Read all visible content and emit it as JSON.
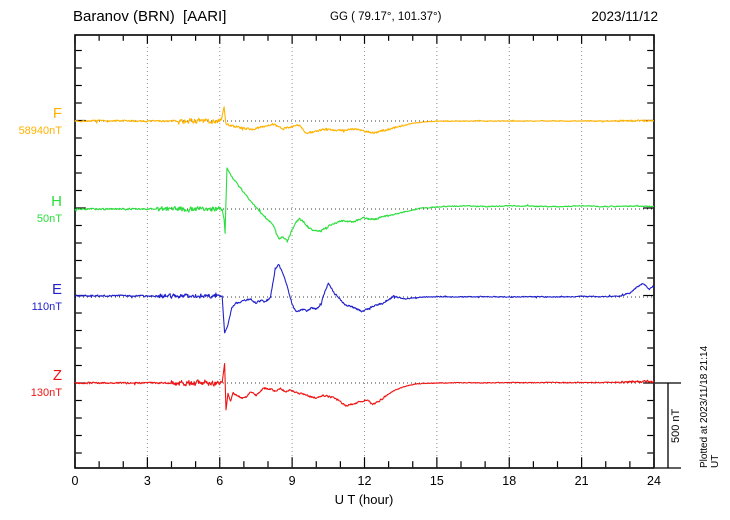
{
  "header": {
    "station": "Baranov (BRN)  [AARI]",
    "coords": "GG ( 79.17°, 101.37°)",
    "date": "2023/11/12"
  },
  "side_note": "Plotted at 2023/11/18 21:14 UT",
  "chart_data": {
    "type": "line",
    "title": "Baranov (BRN) [AARI] magnetogram 2023/11/12",
    "xlabel": "U T (hour)",
    "xlim": [
      0,
      24
    ],
    "x_ticks": [
      0,
      3,
      6,
      9,
      12,
      15,
      18,
      21,
      24
    ],
    "x_minor_step": 1,
    "grid_hours": [
      3,
      6,
      9,
      12,
      15,
      18,
      21
    ],
    "grid_on": true,
    "y_tick_step_nT": 100,
    "scale_bar": {
      "label": "500 nT",
      "nT": 500
    },
    "traces": [
      {
        "id": "F",
        "label": "F",
        "amplitude_label": "58940nT",
        "color": "#ffb300",
        "seed": 7,
        "keypoints": [
          [
            0,
            0
          ],
          [
            6.05,
            0
          ],
          [
            6.18,
            80
          ],
          [
            6.25,
            -15
          ],
          [
            6.5,
            -28
          ],
          [
            7,
            -42
          ],
          [
            7.4,
            -48
          ],
          [
            7.7,
            -34
          ],
          [
            8.2,
            -18
          ],
          [
            8.6,
            -46
          ],
          [
            9,
            -30
          ],
          [
            9.3,
            -24
          ],
          [
            9.6,
            -72
          ],
          [
            10,
            -58
          ],
          [
            10.4,
            -46
          ],
          [
            10.8,
            -56
          ],
          [
            11.2,
            -50
          ],
          [
            11.6,
            -44
          ],
          [
            12,
            -58
          ],
          [
            12.4,
            -68
          ],
          [
            12.8,
            -54
          ],
          [
            13.2,
            -40
          ],
          [
            13.6,
            -26
          ],
          [
            14,
            -13
          ],
          [
            14.5,
            -5
          ],
          [
            15,
            -1
          ],
          [
            16,
            0
          ],
          [
            17,
            0
          ],
          [
            18,
            0
          ],
          [
            19,
            0
          ],
          [
            20,
            0
          ],
          [
            21,
            0
          ],
          [
            22,
            0
          ],
          [
            23,
            2
          ],
          [
            24,
            2
          ]
        ],
        "noise": [
          [
            0,
            4.3,
            9
          ],
          [
            4.3,
            6.1,
            26
          ],
          [
            6.3,
            13.5,
            11
          ],
          [
            13.5,
            22.5,
            4
          ],
          [
            22.5,
            24,
            9
          ]
        ]
      },
      {
        "id": "H",
        "label": "H",
        "amplitude_label": "50nT",
        "color": "#2ade3c",
        "seed": 13,
        "keypoints": [
          [
            0,
            0
          ],
          [
            6.1,
            0
          ],
          [
            6.18,
            -60
          ],
          [
            6.22,
            -140
          ],
          [
            6.3,
            235
          ],
          [
            6.45,
            195
          ],
          [
            6.6,
            165
          ],
          [
            6.8,
            130
          ],
          [
            7,
            95
          ],
          [
            7.2,
            60
          ],
          [
            7.4,
            25
          ],
          [
            7.6,
            -5
          ],
          [
            7.9,
            -48
          ],
          [
            8.2,
            -85
          ],
          [
            8.45,
            -172
          ],
          [
            8.6,
            -158
          ],
          [
            8.8,
            -182
          ],
          [
            9,
            -120
          ],
          [
            9.15,
            -78
          ],
          [
            9.3,
            -56
          ],
          [
            9.5,
            -76
          ],
          [
            9.7,
            -108
          ],
          [
            9.95,
            -128
          ],
          [
            10.2,
            -122
          ],
          [
            10.5,
            -100
          ],
          [
            10.8,
            -80
          ],
          [
            11.1,
            -66
          ],
          [
            11.5,
            -74
          ],
          [
            12,
            -50
          ],
          [
            12.4,
            -60
          ],
          [
            12.8,
            -42
          ],
          [
            13.2,
            -33
          ],
          [
            13.6,
            -18
          ],
          [
            14,
            -6
          ],
          [
            14.4,
            6
          ],
          [
            15,
            12
          ],
          [
            16,
            18
          ],
          [
            17,
            14
          ],
          [
            18,
            18
          ],
          [
            19,
            16
          ],
          [
            20,
            13
          ],
          [
            21,
            18
          ],
          [
            22,
            14
          ],
          [
            23,
            17
          ],
          [
            24,
            15
          ]
        ],
        "noise": [
          [
            0,
            3.4,
            8
          ],
          [
            3.4,
            6.1,
            24
          ],
          [
            6.5,
            13,
            10
          ],
          [
            13,
            24,
            5
          ]
        ]
      },
      {
        "id": "E",
        "label": "E",
        "amplitude_label": "110nT",
        "color": "#2222cc",
        "seed": 21,
        "keypoints": [
          [
            0,
            8
          ],
          [
            6.1,
            5
          ],
          [
            6.2,
            -205
          ],
          [
            6.32,
            -168
          ],
          [
            6.5,
            -62
          ],
          [
            6.7,
            -35
          ],
          [
            6.9,
            -25
          ],
          [
            7.1,
            -18
          ],
          [
            7.3,
            -12
          ],
          [
            7.5,
            -35
          ],
          [
            7.7,
            -18
          ],
          [
            7.9,
            -30
          ],
          [
            8.1,
            -5
          ],
          [
            8.3,
            160
          ],
          [
            8.45,
            185
          ],
          [
            8.6,
            138
          ],
          [
            8.8,
            60
          ],
          [
            9,
            -45
          ],
          [
            9.2,
            -88
          ],
          [
            9.4,
            -70
          ],
          [
            9.6,
            -80
          ],
          [
            9.8,
            -62
          ],
          [
            10,
            -70
          ],
          [
            10.2,
            -42
          ],
          [
            10.35,
            30
          ],
          [
            10.5,
            76
          ],
          [
            10.65,
            45
          ],
          [
            10.8,
            15
          ],
          [
            11,
            -15
          ],
          [
            11.2,
            -45
          ],
          [
            11.5,
            -58
          ],
          [
            11.9,
            -82
          ],
          [
            12.1,
            -70
          ],
          [
            12.4,
            -50
          ],
          [
            12.7,
            -38
          ],
          [
            13,
            -18
          ],
          [
            13.2,
            6
          ],
          [
            13.45,
            -6
          ],
          [
            13.7,
            -12
          ],
          [
            14,
            -5
          ],
          [
            14.5,
            0
          ],
          [
            15,
            2
          ],
          [
            16,
            0
          ],
          [
            17,
            3
          ],
          [
            18,
            0
          ],
          [
            19,
            2
          ],
          [
            20,
            0
          ],
          [
            21,
            3
          ],
          [
            22,
            2
          ],
          [
            22.6,
            6
          ],
          [
            23,
            24
          ],
          [
            23.3,
            56
          ],
          [
            23.5,
            75
          ],
          [
            23.65,
            66
          ],
          [
            23.8,
            42
          ],
          [
            23.95,
            60
          ],
          [
            24,
            55
          ]
        ],
        "noise": [
          [
            0,
            3.4,
            9
          ],
          [
            3.4,
            6.1,
            22
          ],
          [
            6.5,
            13.5,
            10
          ],
          [
            13.5,
            22.5,
            5
          ],
          [
            22.5,
            24,
            7
          ]
        ]
      },
      {
        "id": "Z",
        "label": "Z",
        "amplitude_label": "130nT",
        "color": "#ee1414",
        "seed": 42,
        "keypoints": [
          [
            0,
            0
          ],
          [
            6.1,
            0
          ],
          [
            6.2,
            112
          ],
          [
            6.26,
            -152
          ],
          [
            6.34,
            -58
          ],
          [
            6.45,
            -108
          ],
          [
            6.55,
            -55
          ],
          [
            6.7,
            -70
          ],
          [
            6.9,
            -88
          ],
          [
            7.1,
            -80
          ],
          [
            7.3,
            -46
          ],
          [
            7.5,
            -70
          ],
          [
            7.7,
            -42
          ],
          [
            7.9,
            -28
          ],
          [
            8.1,
            -36
          ],
          [
            8.3,
            -46
          ],
          [
            8.5,
            -30
          ],
          [
            8.7,
            -50
          ],
          [
            8.9,
            -40
          ],
          [
            9.1,
            -52
          ],
          [
            9.4,
            -62
          ],
          [
            9.7,
            -76
          ],
          [
            10,
            -86
          ],
          [
            10.3,
            -72
          ],
          [
            10.6,
            -80
          ],
          [
            10.9,
            -96
          ],
          [
            11.2,
            -130
          ],
          [
            11.5,
            -120
          ],
          [
            11.8,
            -108
          ],
          [
            12.1,
            -96
          ],
          [
            12.35,
            -124
          ],
          [
            12.6,
            -104
          ],
          [
            12.9,
            -70
          ],
          [
            13.2,
            -46
          ],
          [
            13.5,
            -28
          ],
          [
            13.8,
            -15
          ],
          [
            14.1,
            -6
          ],
          [
            14.5,
            -2
          ],
          [
            15,
            0
          ],
          [
            16,
            2
          ],
          [
            17,
            0
          ],
          [
            18,
            3
          ],
          [
            19,
            2
          ],
          [
            20,
            3
          ],
          [
            21,
            2
          ],
          [
            22,
            3
          ],
          [
            23,
            6
          ],
          [
            24,
            10
          ]
        ],
        "noise": [
          [
            0,
            4,
            9
          ],
          [
            4,
            6.1,
            26
          ],
          [
            6.5,
            13,
            10
          ],
          [
            13,
            22.5,
            4
          ],
          [
            22.5,
            24,
            12
          ]
        ]
      }
    ]
  }
}
